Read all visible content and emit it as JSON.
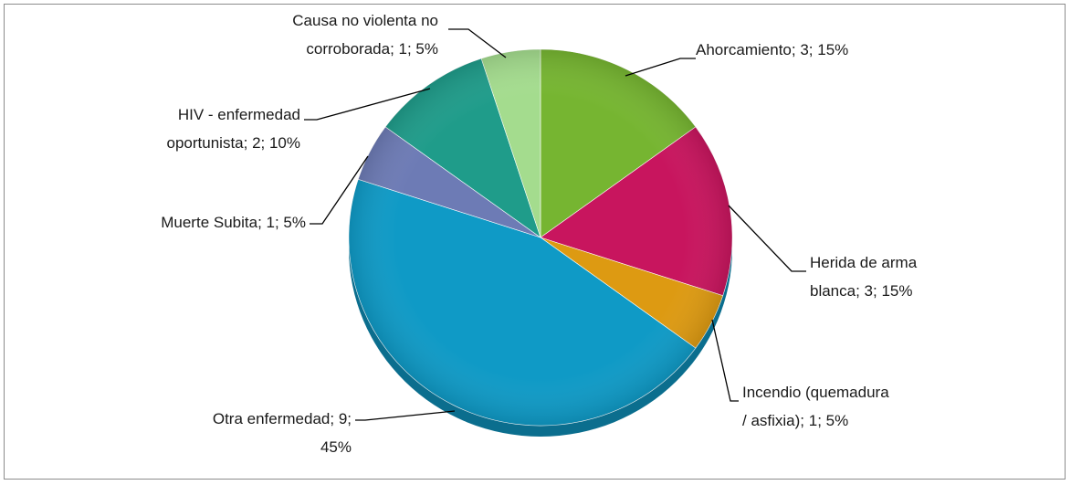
{
  "chart_data": {
    "type": "pie",
    "title": "",
    "categories": [
      "Ahorcamiento",
      "Herida de arma blanca",
      "Incendio (quemadura / asfixia)",
      "Otra enfermedad",
      "Muerte Subita",
      "HIV - enfermedad oportunista",
      "Causa no violenta no corroborada"
    ],
    "values": [
      3,
      3,
      1,
      9,
      1,
      2,
      1
    ],
    "percentages": [
      15,
      15,
      5,
      45,
      5,
      10,
      5
    ],
    "colors": [
      "#76b531",
      "#c8155e",
      "#dd9a12",
      "#0f9ac6",
      "#6d7bb5",
      "#1f9c8a",
      "#a4dc8e"
    ],
    "labels": [
      [
        "Ahorcamiento; 3; 15%"
      ],
      [
        "Herida de arma",
        "blanca; 3; 15%"
      ],
      [
        "Incendio (quemadura",
        "/ asfixia); 1; 5%"
      ],
      [
        "Otra enfermedad; 9;",
        "45%"
      ],
      [
        "Muerte Subita; 1; 5%"
      ],
      [
        "HIV - enfermedad",
        "oportunista; 2; 10%"
      ],
      [
        "Causa no violenta no",
        "corroborada; 1; 5%"
      ]
    ],
    "legend": "none"
  }
}
